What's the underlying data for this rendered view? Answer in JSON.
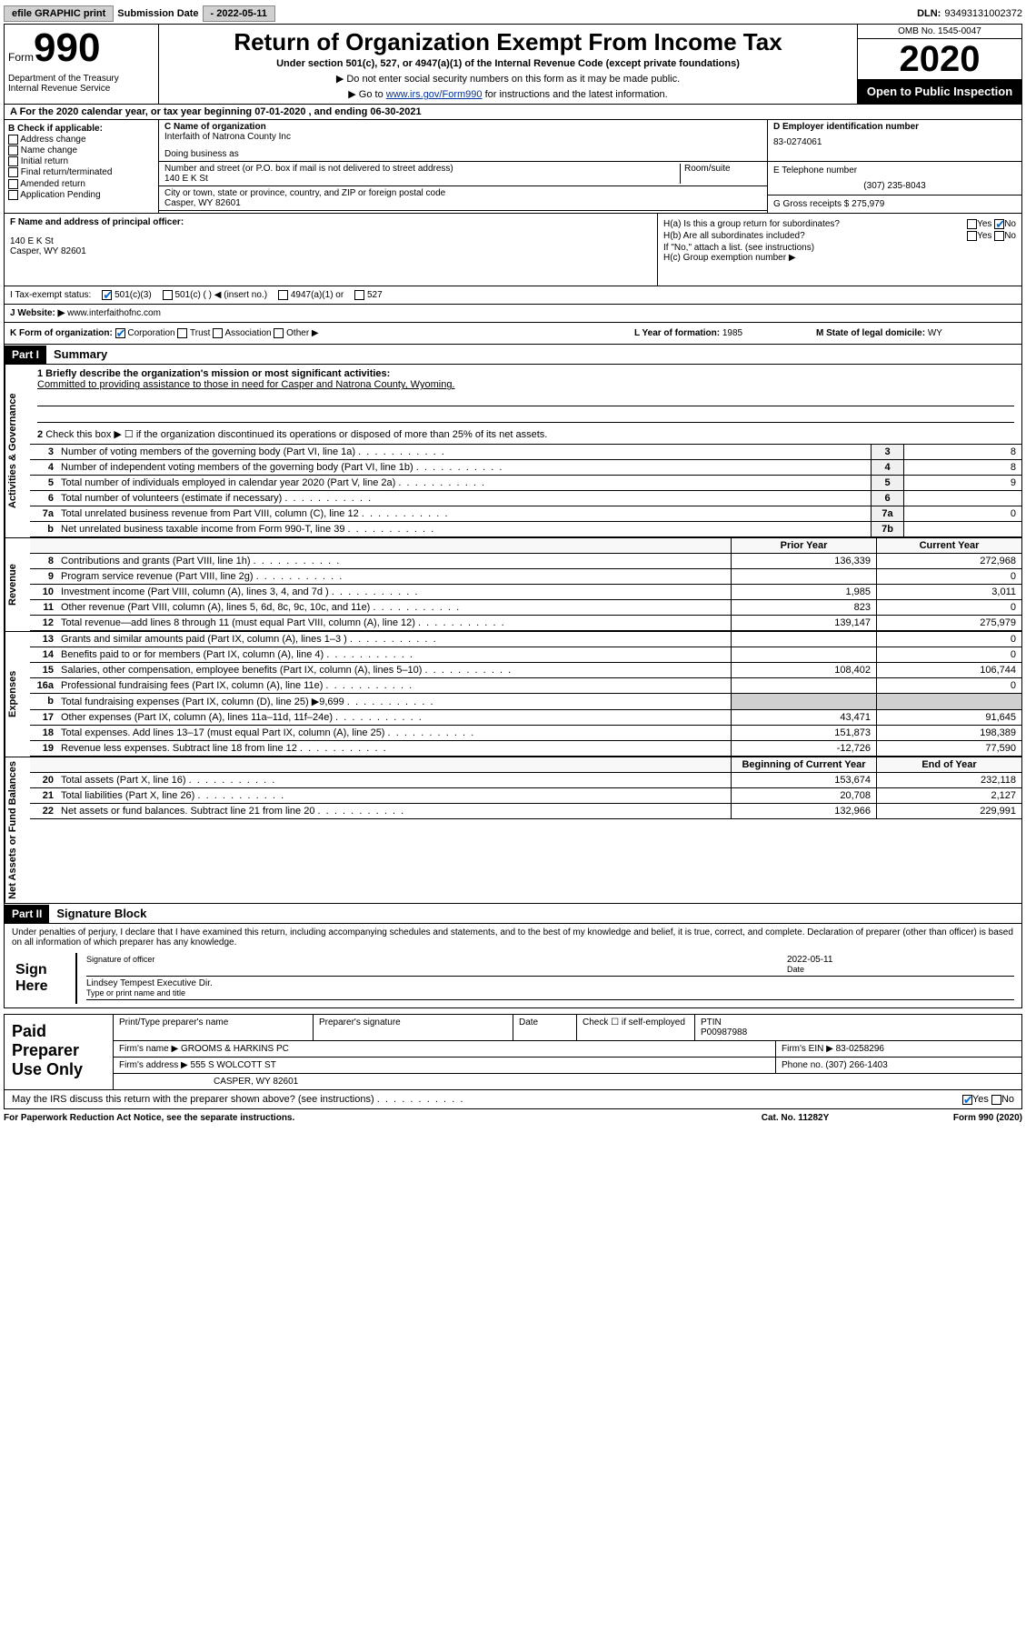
{
  "top": {
    "efile": "efile GRAPHIC print",
    "sub_label": "Submission Date",
    "sub_date": "- 2022-05-11",
    "dln_label": "DLN:",
    "dln": "93493131002372"
  },
  "header": {
    "form_word": "Form",
    "form_num": "990",
    "dept": "Department of the Treasury\nInternal Revenue Service",
    "title": "Return of Organization Exempt From Income Tax",
    "subtitle": "Under section 501(c), 527, or 4947(a)(1) of the Internal Revenue Code (except private foundations)",
    "note1": "▶ Do not enter social security numbers on this form as it may be made public.",
    "note2_prefix": "▶ Go to ",
    "note2_link": "www.irs.gov/Form990",
    "note2_suffix": " for instructions and the latest information.",
    "omb": "OMB No. 1545-0047",
    "year": "2020",
    "inspect": "Open to Public Inspection"
  },
  "period": {
    "text": "A   For the 2020 calendar year, or tax year beginning 07-01-2020    , and ending 06-30-2021"
  },
  "section_b": {
    "header": "B Check if applicable:",
    "opts": [
      "Address change",
      "Name change",
      "Initial return",
      "Final return/terminated",
      "Amended return",
      "Application Pending"
    ]
  },
  "org": {
    "name_label": "C Name of organization",
    "name": "Interfaith of Natrona County Inc",
    "dba_label": "Doing business as",
    "dba": "",
    "street_label": "Number and street (or P.O. box if mail is not delivered to street address)",
    "room_label": "Room/suite",
    "street": "140 E K St",
    "city_label": "City or town, state or province, country, and ZIP or foreign postal code",
    "city": "Casper, WY  82601"
  },
  "ein": {
    "label": "D Employer identification number",
    "value": "83-0274061"
  },
  "phone": {
    "label": "E Telephone number",
    "value": "(307) 235-8043"
  },
  "gross": {
    "label": "G Gross receipts $",
    "value": "275,979"
  },
  "officer": {
    "label": "F  Name and address of principal officer:",
    "addr1": "140 E K St",
    "addr2": "Casper, WY  82601"
  },
  "h": {
    "a_label": "H(a)  Is this a group return for subordinates?",
    "a_yes": "Yes",
    "a_no": "No",
    "b_label": "H(b)  Are all subordinates included?",
    "b_yes": "Yes",
    "b_no": "No",
    "b_note": "If \"No,\" attach a list. (see instructions)",
    "c_label": "H(c)  Group exemption number ▶"
  },
  "status": {
    "label": "I   Tax-exempt status:",
    "opt1": "501(c)(3)",
    "opt2": "501(c) (  ) ◀ (insert no.)",
    "opt3": "4947(a)(1) or",
    "opt4": "527"
  },
  "website": {
    "label": "J   Website: ▶",
    "value": "www.interfaithofnc.com"
  },
  "k": {
    "label": "K Form of organization:",
    "opts": [
      "Corporation",
      "Trust",
      "Association",
      "Other ▶"
    ]
  },
  "l": {
    "label": "L Year of formation:",
    "value": "1985"
  },
  "m": {
    "label": "M State of legal domicile:",
    "value": "WY"
  },
  "part1": {
    "hdr": "Part I",
    "title": "Summary"
  },
  "governance": {
    "label": "Activities & Governance",
    "l1_label": "1   Briefly describe the organization's mission or most significant activities:",
    "l1_text": "Committed to providing assistance to those in need for Casper and Natrona County, Wyoming.",
    "l2": "Check this box ▶ ☐  if the organization discontinued its operations or disposed of more than 25% of its net assets.",
    "rows": [
      {
        "n": "3",
        "desc": "Number of voting members of the governing body (Part VI, line 1a)",
        "box": "3",
        "val": "8"
      },
      {
        "n": "4",
        "desc": "Number of independent voting members of the governing body (Part VI, line 1b)",
        "box": "4",
        "val": "8"
      },
      {
        "n": "5",
        "desc": "Total number of individuals employed in calendar year 2020 (Part V, line 2a)",
        "box": "5",
        "val": "9"
      },
      {
        "n": "6",
        "desc": "Total number of volunteers (estimate if necessary)",
        "box": "6",
        "val": ""
      },
      {
        "n": "7a",
        "desc": "Total unrelated business revenue from Part VIII, column (C), line 12",
        "box": "7a",
        "val": "0"
      },
      {
        "n": "b",
        "desc": "Net unrelated business taxable income from Form 990-T, line 39",
        "box": "7b",
        "val": ""
      }
    ]
  },
  "revenue": {
    "label": "Revenue",
    "hdr_prior": "Prior Year",
    "hdr_current": "Current Year",
    "rows": [
      {
        "n": "8",
        "desc": "Contributions and grants (Part VIII, line 1h)",
        "prior": "136,339",
        "curr": "272,968"
      },
      {
        "n": "9",
        "desc": "Program service revenue (Part VIII, line 2g)",
        "prior": "",
        "curr": "0"
      },
      {
        "n": "10",
        "desc": "Investment income (Part VIII, column (A), lines 3, 4, and 7d )",
        "prior": "1,985",
        "curr": "3,011"
      },
      {
        "n": "11",
        "desc": "Other revenue (Part VIII, column (A), lines 5, 6d, 8c, 9c, 10c, and 11e)",
        "prior": "823",
        "curr": "0"
      },
      {
        "n": "12",
        "desc": "Total revenue—add lines 8 through 11 (must equal Part VIII, column (A), line 12)",
        "prior": "139,147",
        "curr": "275,979"
      }
    ]
  },
  "expenses": {
    "label": "Expenses",
    "rows": [
      {
        "n": "13",
        "desc": "Grants and similar amounts paid (Part IX, column (A), lines 1–3 )",
        "prior": "",
        "curr": "0"
      },
      {
        "n": "14",
        "desc": "Benefits paid to or for members (Part IX, column (A), line 4)",
        "prior": "",
        "curr": "0"
      },
      {
        "n": "15",
        "desc": "Salaries, other compensation, employee benefits (Part IX, column (A), lines 5–10)",
        "prior": "108,402",
        "curr": "106,744"
      },
      {
        "n": "16a",
        "desc": "Professional fundraising fees (Part IX, column (A), line 11e)",
        "prior": "",
        "curr": "0"
      },
      {
        "n": "b",
        "desc": "Total fundraising expenses (Part IX, column (D), line 25) ▶9,699",
        "prior": "",
        "curr": "",
        "gray": true
      },
      {
        "n": "17",
        "desc": "Other expenses (Part IX, column (A), lines 11a–11d, 11f–24e)",
        "prior": "43,471",
        "curr": "91,645"
      },
      {
        "n": "18",
        "desc": "Total expenses. Add lines 13–17 (must equal Part IX, column (A), line 25)",
        "prior": "151,873",
        "curr": "198,389"
      },
      {
        "n": "19",
        "desc": "Revenue less expenses. Subtract line 18 from line 12",
        "prior": "-12,726",
        "curr": "77,590"
      }
    ]
  },
  "netassets": {
    "label": "Net Assets or Fund Balances",
    "hdr_beg": "Beginning of Current Year",
    "hdr_end": "End of Year",
    "rows": [
      {
        "n": "20",
        "desc": "Total assets (Part X, line 16)",
        "prior": "153,674",
        "curr": "232,118"
      },
      {
        "n": "21",
        "desc": "Total liabilities (Part X, line 26)",
        "prior": "20,708",
        "curr": "2,127"
      },
      {
        "n": "22",
        "desc": "Net assets or fund balances. Subtract line 21 from line 20",
        "prior": "132,966",
        "curr": "229,991"
      }
    ]
  },
  "part2": {
    "hdr": "Part II",
    "title": "Signature Block"
  },
  "sig": {
    "perjury": "Under penalties of perjury, I declare that I have examined this return, including accompanying schedules and statements, and to the best of my knowledge and belief, it is true, correct, and complete. Declaration of preparer (other than officer) is based on all information of which preparer has any knowledge.",
    "sign_here": "Sign Here",
    "sig_officer": "Signature of officer",
    "date_label": "Date",
    "date": "2022-05-11",
    "name": "Lindsey Tempest  Executive Dir.",
    "name_label": "Type or print name and title"
  },
  "preparer": {
    "label": "Paid Preparer Use Only",
    "cells": {
      "name_label": "Print/Type preparer's name",
      "sig_label": "Preparer's signature",
      "date_label": "Date",
      "check_label": "Check ☐ if self-employed",
      "ptin_label": "PTIN",
      "ptin": "P00987988",
      "firm_name_label": "Firm's name    ▶",
      "firm_name": "GROOMS & HARKINS PC",
      "firm_ein_label": "Firm's EIN ▶",
      "firm_ein": "83-0258296",
      "firm_addr_label": "Firm's address ▶",
      "firm_addr1": "555 S WOLCOTT ST",
      "firm_addr2": "CASPER, WY  82601",
      "phone_label": "Phone no.",
      "phone": "(307) 266-1403"
    }
  },
  "discuss": {
    "q": "May the IRS discuss this return with the preparer shown above? (see instructions)",
    "yes": "Yes",
    "no": "No"
  },
  "footer": {
    "left": "For Paperwork Reduction Act Notice, see the separate instructions.",
    "mid": "Cat. No. 11282Y",
    "right": "Form 990 (2020)"
  }
}
